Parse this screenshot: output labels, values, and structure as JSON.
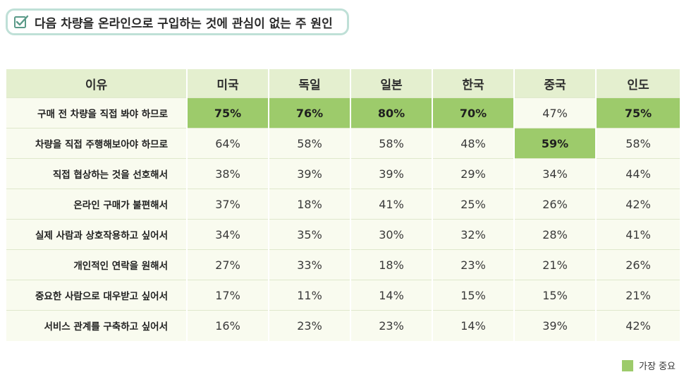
{
  "title": "다음 차량을 온라인으로 구입하는 것에 관심이 없는 주 원인",
  "table": {
    "headers": [
      "이유",
      "미국",
      "독일",
      "일본",
      "한국",
      "중국",
      "인도"
    ],
    "rows": [
      {
        "reason": "구매 전 차량을 직접 봐야 하므로",
        "values": [
          "75%",
          "76%",
          "80%",
          "70%",
          "47%",
          "75%"
        ],
        "highlight": [
          true,
          true,
          true,
          true,
          false,
          true
        ]
      },
      {
        "reason": "차량을 직접 주행해보아야 하므로",
        "values": [
          "64%",
          "58%",
          "58%",
          "48%",
          "59%",
          "58%"
        ],
        "highlight": [
          false,
          false,
          false,
          false,
          true,
          false
        ]
      },
      {
        "reason": "직접 협상하는 것을 선호해서",
        "values": [
          "38%",
          "39%",
          "39%",
          "29%",
          "34%",
          "44%"
        ],
        "highlight": [
          false,
          false,
          false,
          false,
          false,
          false
        ]
      },
      {
        "reason": "온라인 구매가 불편해서",
        "values": [
          "37%",
          "18%",
          "41%",
          "25%",
          "26%",
          "42%"
        ],
        "highlight": [
          false,
          false,
          false,
          false,
          false,
          false
        ]
      },
      {
        "reason": "실제 사람과 상호작용하고 싶어서",
        "values": [
          "34%",
          "35%",
          "30%",
          "32%",
          "28%",
          "41%"
        ],
        "highlight": [
          false,
          false,
          false,
          false,
          false,
          false
        ]
      },
      {
        "reason": "개인적인 연락을 원해서",
        "values": [
          "27%",
          "33%",
          "18%",
          "23%",
          "21%",
          "26%"
        ],
        "highlight": [
          false,
          false,
          false,
          false,
          false,
          false
        ]
      },
      {
        "reason": "중요한 사람으로 대우받고 싶어서",
        "values": [
          "17%",
          "11%",
          "14%",
          "15%",
          "15%",
          "21%"
        ],
        "highlight": [
          false,
          false,
          false,
          false,
          false,
          false
        ]
      },
      {
        "reason": "서비스 관계를 구축하고 싶어서",
        "values": [
          "16%",
          "23%",
          "23%",
          "14%",
          "39%",
          "42%"
        ],
        "highlight": [
          false,
          false,
          false,
          false,
          false,
          false
        ]
      }
    ]
  },
  "legend": {
    "label": "가장 중요",
    "color": "#9dcb6b"
  },
  "colors": {
    "header_bg": "#e4efcf",
    "cell_bg": "#f9fbef",
    "highlight": "#9dcb6b",
    "title_border": "#bfe0d7",
    "check": "#5a9a88"
  },
  "icons": {
    "title": "checkbox-checked-icon"
  }
}
